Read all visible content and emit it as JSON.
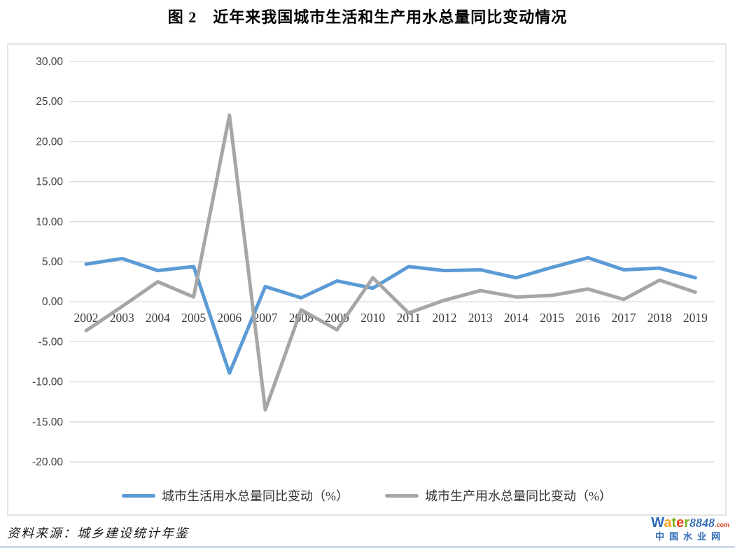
{
  "page": {
    "title": "图 2　近年来我国城市生活和生产用水总量同比变动情况",
    "source_note": "资料来源：城乡建设统计年鉴"
  },
  "chart_data": {
    "type": "line",
    "title": "图 2　近年来我国城市生活和生产用水总量同比变动情况",
    "categories": [
      "2002",
      "2003",
      "2004",
      "2005",
      "2006",
      "2007",
      "2008",
      "2009",
      "2010",
      "2011",
      "2012",
      "2013",
      "2014",
      "2015",
      "2016",
      "2017",
      "2018",
      "2019"
    ],
    "series": [
      {
        "name": "城市生活用水总量同比变动（%）",
        "color": "#5B9BD5",
        "values": [
          4.7,
          5.4,
          3.9,
          4.4,
          -8.9,
          1.9,
          0.5,
          2.6,
          1.7,
          4.4,
          3.9,
          4.0,
          3.0,
          4.3,
          5.5,
          4.0,
          4.2,
          3.0
        ]
      },
      {
        "name": "城市生产用水总量同比变动（%）",
        "color": "#A6A6A6",
        "values": [
          -3.6,
          -0.6,
          2.5,
          0.6,
          23.3,
          -13.5,
          -1.0,
          -3.5,
          3.0,
          -1.4,
          0.2,
          1.4,
          0.6,
          0.8,
          1.6,
          0.3,
          2.7,
          1.2
        ]
      }
    ],
    "ylim": [
      -20,
      30
    ],
    "ytick_step": 5,
    "ytick_decimals": 2,
    "grid": true,
    "gridline_color": "#D9D9D9",
    "axis_label_color": "#404040",
    "line_width": 5,
    "legend_position": "bottom"
  },
  "logo": {
    "wordmark_letters": [
      {
        "char": "W",
        "color": "#2A6AB8"
      },
      {
        "char": "a",
        "color": "#F7A11A"
      },
      {
        "char": "t",
        "color": "#7CB41F"
      },
      {
        "char": "e",
        "color": "#E84517"
      },
      {
        "char": "r",
        "color": "#7CB41F"
      }
    ],
    "wordmark_number": "8848",
    "wordmark_number_color": "#2E6CB5",
    "wordmark_tld": ".com",
    "wordmark_tld_color": "#E03A1C",
    "subtitle": "中国水业网",
    "subtitle_color": "#2E6CB5"
  }
}
